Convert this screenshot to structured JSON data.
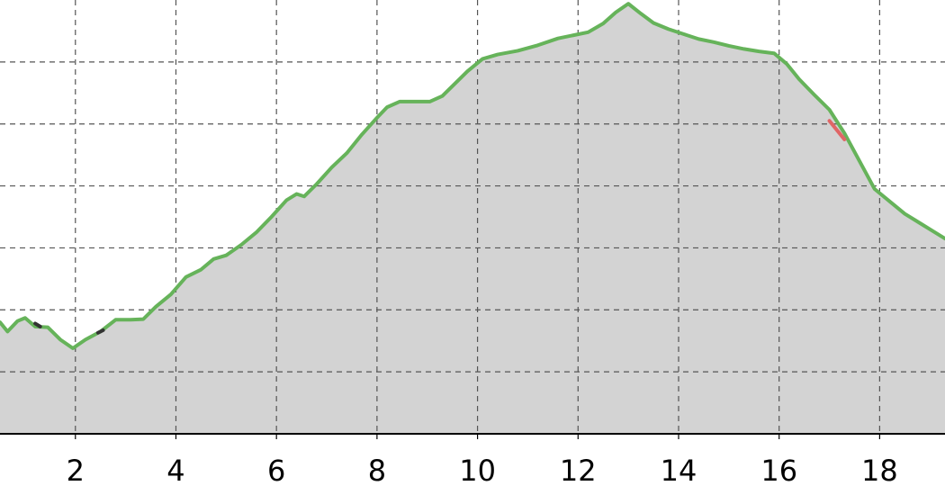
{
  "chart_data": {
    "type": "area",
    "title": "",
    "xlabel": "",
    "ylabel": "",
    "xlim": [
      0.5,
      19.3
    ],
    "ylim": [
      -1,
      6
    ],
    "x_ticks": [
      2,
      4,
      6,
      8,
      10,
      12,
      14,
      16,
      18
    ],
    "x_tick_labels": [
      "2",
      "4",
      "6",
      "8",
      "10",
      "12",
      "14",
      "16",
      "18"
    ],
    "y_gridlines": [
      0,
      1,
      2,
      3,
      4,
      5
    ],
    "grid": true,
    "legend": "none",
    "colors": {
      "fill": "#d3d3d3",
      "line": "#66b35a",
      "highlight_red": "#e06666",
      "highlight_dark": "#333333"
    },
    "series": [
      {
        "values": {
          "x": [
            0.5,
            0.65,
            0.85,
            1.0,
            1.2,
            1.45,
            1.7,
            1.95,
            2.2,
            2.5,
            2.8,
            3.1,
            3.35,
            3.6,
            3.9,
            4.2,
            4.5,
            4.75,
            5.0,
            5.3,
            5.6,
            5.9,
            6.2,
            6.4,
            6.55,
            6.8,
            7.1,
            7.4,
            7.7,
            8.0,
            8.2,
            8.45,
            8.75,
            9.05,
            9.3,
            9.55,
            9.8,
            10.1,
            10.4,
            10.8,
            11.2,
            11.6,
            11.9,
            12.2,
            12.5,
            12.75,
            13.0,
            13.25,
            13.5,
            13.8,
            14.1,
            14.4,
            14.7,
            15.0,
            15.3,
            15.6,
            15.9,
            16.15,
            16.4,
            16.7,
            17.0,
            17.3,
            17.6,
            17.9,
            18.2,
            18.5,
            18.8,
            19.1,
            19.3
          ]
        },
        "y_values": [
          0.8,
          0.65,
          0.82,
          0.87,
          0.73,
          0.72,
          0.52,
          0.38,
          0.52,
          0.65,
          0.84,
          0.84,
          0.85,
          1.05,
          1.25,
          1.53,
          1.65,
          1.82,
          1.88,
          2.05,
          2.25,
          2.5,
          2.77,
          2.87,
          2.83,
          3.03,
          3.3,
          3.53,
          3.83,
          4.1,
          4.27,
          4.36,
          4.36,
          4.36,
          4.45,
          4.65,
          4.85,
          5.05,
          5.12,
          5.18,
          5.27,
          5.38,
          5.43,
          5.48,
          5.62,
          5.8,
          5.94,
          5.78,
          5.63,
          5.53,
          5.45,
          5.37,
          5.32,
          5.26,
          5.21,
          5.17,
          5.14,
          4.97,
          4.72,
          4.47,
          4.23,
          3.85,
          3.4,
          2.95,
          2.75,
          2.55,
          2.4,
          2.25,
          2.15
        ]
      }
    ],
    "highlights": [
      {
        "x": [
          1.2,
          1.3
        ],
        "y": [
          0.78,
          0.73
        ],
        "color": "#333333"
      },
      {
        "x": [
          2.45,
          2.55
        ],
        "y": [
          0.63,
          0.67
        ],
        "color": "#333333"
      },
      {
        "x": [
          17.0,
          17.3
        ],
        "y": [
          4.05,
          3.75
        ],
        "color": "#e06666"
      }
    ]
  }
}
